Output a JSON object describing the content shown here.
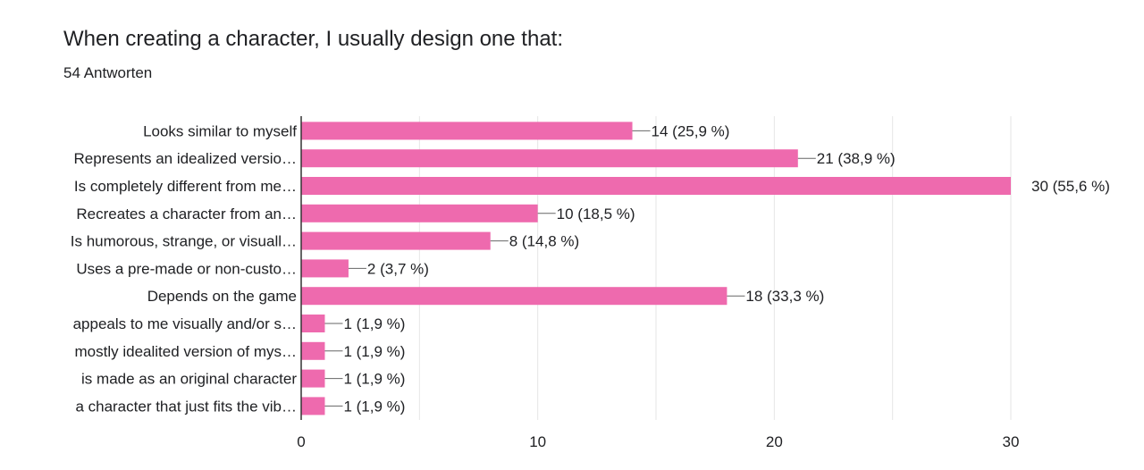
{
  "header": {
    "title": "When creating a character, I usually design one that:",
    "response_count": "54 Antworten"
  },
  "colors": {
    "bar": "#ee6aae",
    "gridline": "#e6e6e6",
    "axis": "#333333",
    "connector": "#666666"
  },
  "chart_data": {
    "type": "bar",
    "orientation": "horizontal",
    "title": "When creating a character, I usually design one that:",
    "xlabel": "",
    "ylabel": "",
    "xlim": [
      0,
      30
    ],
    "xticks": [
      0,
      10,
      20,
      30
    ],
    "grid": true,
    "categories": [
      "Looks similar to myself",
      "Represents an idealized versio…",
      "Is completely different from me…",
      "Recreates a character from an…",
      "Is humorous, strange, or visuall…",
      "Uses a pre-made or non-custo…",
      "Depends on the game",
      "appeals to me visually and/or s…",
      "mostly idealited version of mys…",
      "is made as an original character",
      "a character that just fits the vib…"
    ],
    "values": [
      14,
      21,
      30,
      10,
      8,
      2,
      18,
      1,
      1,
      1,
      1
    ],
    "data_labels": [
      "14 (25,9 %)",
      "21 (38,9 %)",
      "30 (55,6 %)",
      "10 (18,5 %)",
      "8 (14,8 %)",
      "2 (3,7 %)",
      "18 (33,3 %)",
      "1 (1,9 %)",
      "1 (1,9 %)",
      "1 (1,9 %)",
      "1 (1,9 %)"
    ]
  }
}
